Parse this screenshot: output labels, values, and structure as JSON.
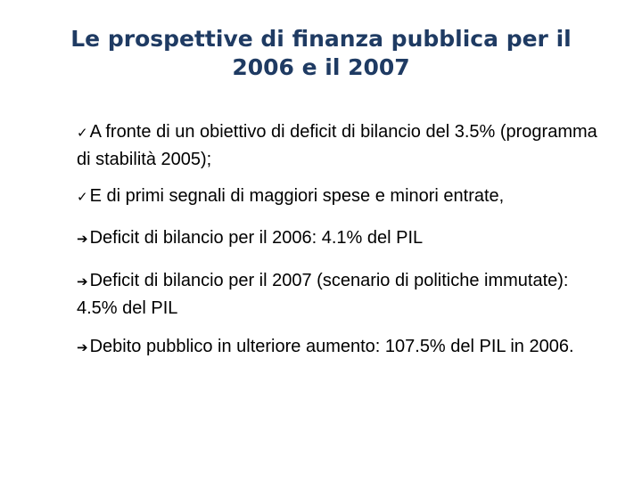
{
  "slide": {
    "title_line1": "Le prospettive di finanza pubblica per il",
    "title_line2": "2006 e il 2007",
    "bullets": [
      {
        "marker": "✓",
        "text": "A fronte di un obiettivo di deficit di bilancio del 3.5% (programma di stabilità 2005);"
      },
      {
        "marker": "✓",
        "text": "E di primi segnali di maggiori spese e minori entrate,"
      },
      {
        "marker": "➔",
        "text": "Deficit di bilancio per il 2006: 4.1% del PIL"
      },
      {
        "marker": "➔",
        "text": "Deficit di bilancio per il 2007 (scenario di politiche immutate): 4.5% del PIL"
      },
      {
        "marker": "➔",
        "text": "Debito pubblico in ulteriore aumento: 107.5% del PIL in 2006."
      }
    ]
  }
}
